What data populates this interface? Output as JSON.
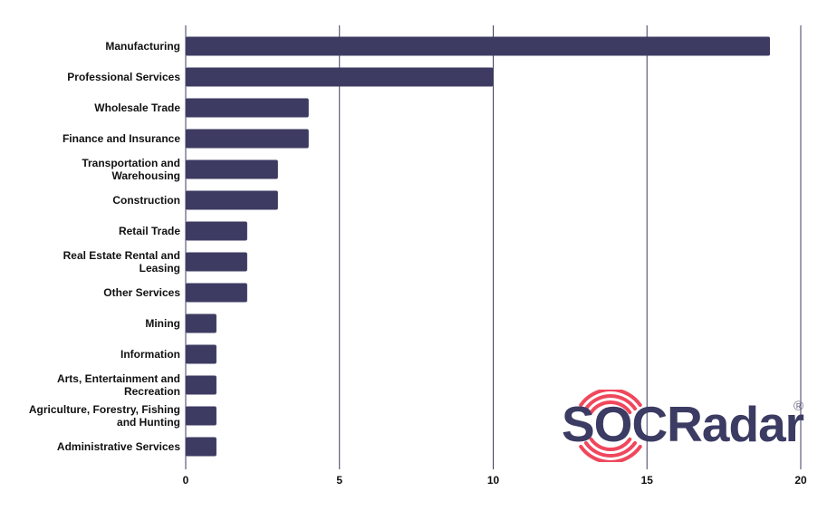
{
  "chart_data": {
    "type": "bar",
    "orientation": "horizontal",
    "categories": [
      "Manufacturing",
      "Professional Services",
      "Wholesale Trade",
      "Finance and Insurance",
      "Transportation and Warehousing",
      "Construction",
      "Retail Trade",
      "Real Estate Rental and Leasing",
      "Other Services",
      "Mining",
      "Information",
      "Arts, Entertainment and Recreation",
      "Agriculture, Forestry, Fishing and Hunting",
      "Administrative Services"
    ],
    "category_lines": [
      [
        "Manufacturing"
      ],
      [
        "Professional Services"
      ],
      [
        "Wholesale Trade"
      ],
      [
        "Finance and Insurance"
      ],
      [
        "Transportation and",
        "Warehousing"
      ],
      [
        "Construction"
      ],
      [
        "Retail Trade"
      ],
      [
        "Real Estate Rental and",
        "Leasing"
      ],
      [
        "Other Services"
      ],
      [
        "Mining"
      ],
      [
        "Information"
      ],
      [
        "Arts, Entertainment and",
        "Recreation"
      ],
      [
        "Agriculture, Forestry, Fishing",
        "and Hunting"
      ],
      [
        "Administrative Services"
      ]
    ],
    "values": [
      19,
      10,
      4,
      4,
      3,
      3,
      2,
      2,
      2,
      1,
      1,
      1,
      1,
      1
    ],
    "xlim": [
      0,
      20
    ],
    "xticks": [
      0,
      5,
      10,
      15,
      20
    ],
    "xlabel": "",
    "ylabel": "",
    "title": "",
    "grid": "vertical",
    "bar_color": "#3d3b62",
    "grid_color": "#3d3b62"
  },
  "watermark": {
    "text": "SOCRadar",
    "registered_mark": "®",
    "icon": "radar-signal-icon",
    "icon_color": "#f0475c",
    "text_color": "#3b3b63"
  }
}
